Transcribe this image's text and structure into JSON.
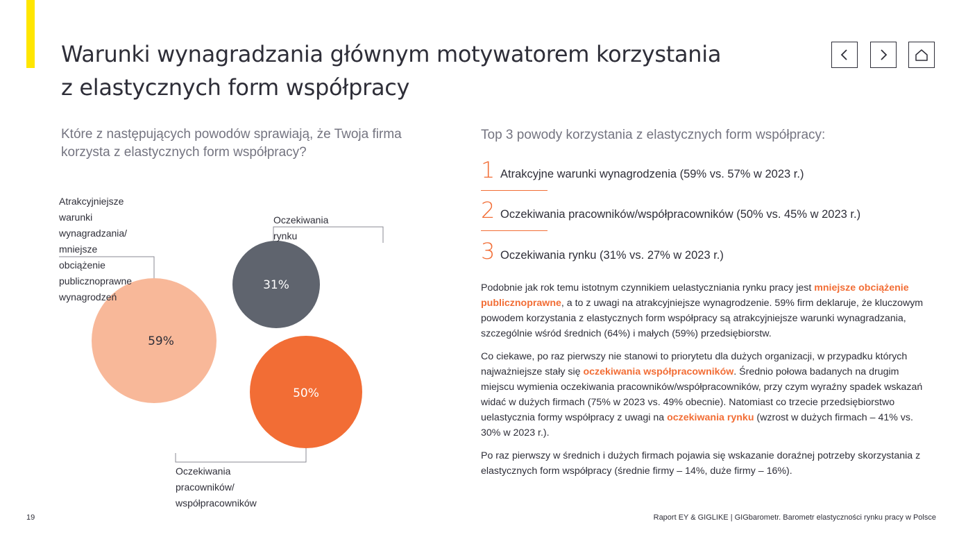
{
  "header": {
    "title_line1": "Warunki wynagradzania głównym motywatorem korzystania",
    "title_line2": "z elastycznych form współpracy"
  },
  "nav": {
    "prev_icon": "chevron-left-icon",
    "next_icon": "chevron-right-icon",
    "home_icon": "home-icon"
  },
  "question": {
    "line1": "Które z następujących powodów sprawiają, że Twoja firma",
    "line2": "korzysta z elastycznych form współpracy?"
  },
  "chart_data": {
    "type": "bubble",
    "title": "",
    "series": [
      {
        "name": "Atrakcyjniejsze warunki wynagradzania/ mniejsze obciążenie publicznoprawne wynagrodzeń",
        "label_lines": [
          "Atrakcyjniejsze warunki",
          "wynagradzania/ mniejsze",
          "obciążenie publicznoprawne",
          "wynagrodzeń"
        ],
        "value": 59,
        "value_label": "59%",
        "color": "#f8b899",
        "text_color": "#2e2e38"
      },
      {
        "name": "Oczekiwania rynku",
        "label_lines": [
          "Oczekiwania rynku"
        ],
        "value": 31,
        "value_label": "31%",
        "color": "#5f646e",
        "text_color": "#ffffff"
      },
      {
        "name": "Oczekiwania pracowników/ współpracowników",
        "label_lines": [
          "Oczekiwania pracowników/",
          "współpracowników"
        ],
        "value": 50,
        "value_label": "50%",
        "color": "#f26d35",
        "text_color": "#ffffff"
      }
    ]
  },
  "top3": {
    "title": "Top 3 powody korzystania z elastycznych form współpracy:",
    "items": [
      {
        "num": "1",
        "text": "Atrakcyjne warunki wynagrodzenia (59% vs. 57% w 2023 r.)"
      },
      {
        "num": "2",
        "text": "Oczekiwania pracowników/współpracowników (50% vs. 45% w 2023 r.)"
      },
      {
        "num": "3",
        "text": "Oczekiwania rynku (31% vs. 27% w 2023 r.)"
      }
    ]
  },
  "body": {
    "p1_a": "Podobnie jak rok temu istotnym czynnikiem uelastyczniania rynku pracy jest ",
    "p1_hl": "mniejsze obciążenie publicznoprawne",
    "p1_b": ", a to z uwagi na atrakcyjniejsze wynagrodzenie. 59% firm deklaruje, że kluczowym powodem korzystania z elastycznych form współpracy są atrakcyjniejsze warunki wynagradzania, szczególnie wśród średnich (64%) i małych (59%) przedsiębiorstw.",
    "p2_a": "Co ciekawe, po raz pierwszy nie stanowi to priorytetu dla dużych organizacji, w przypadku których najważniejsze stały się ",
    "p2_hl1": "oczekiwania współpracowników",
    "p2_b": ". Średnio połowa badanych na drugim miejscu wymienia oczekiwania pracowników/współpracowników, przy czym wyraźny spadek wskazań widać w dużych firmach (75% w 2023 vs. 49% obecnie). Natomiast co trzecie przedsiębiorstwo uelastycznia formy współpracy z uwagi na ",
    "p2_hl2": "oczekiwania rynku",
    "p2_c": " (wzrost w dużych firmach – 41% vs. 30% w 2023 r.).",
    "p3": "Po raz pierwszy w średnich i dużych firmach pojawia się wskazanie doraźnej potrzeby skorzystania z elastycznych form współpracy (średnie firmy – 14%, duże firmy – 16%)."
  },
  "footer": {
    "page_number": "19",
    "report_title": "Raport EY & GIGLIKE | GIGbarometr. Barometr elastyczności rynku pracy w Polsce"
  }
}
